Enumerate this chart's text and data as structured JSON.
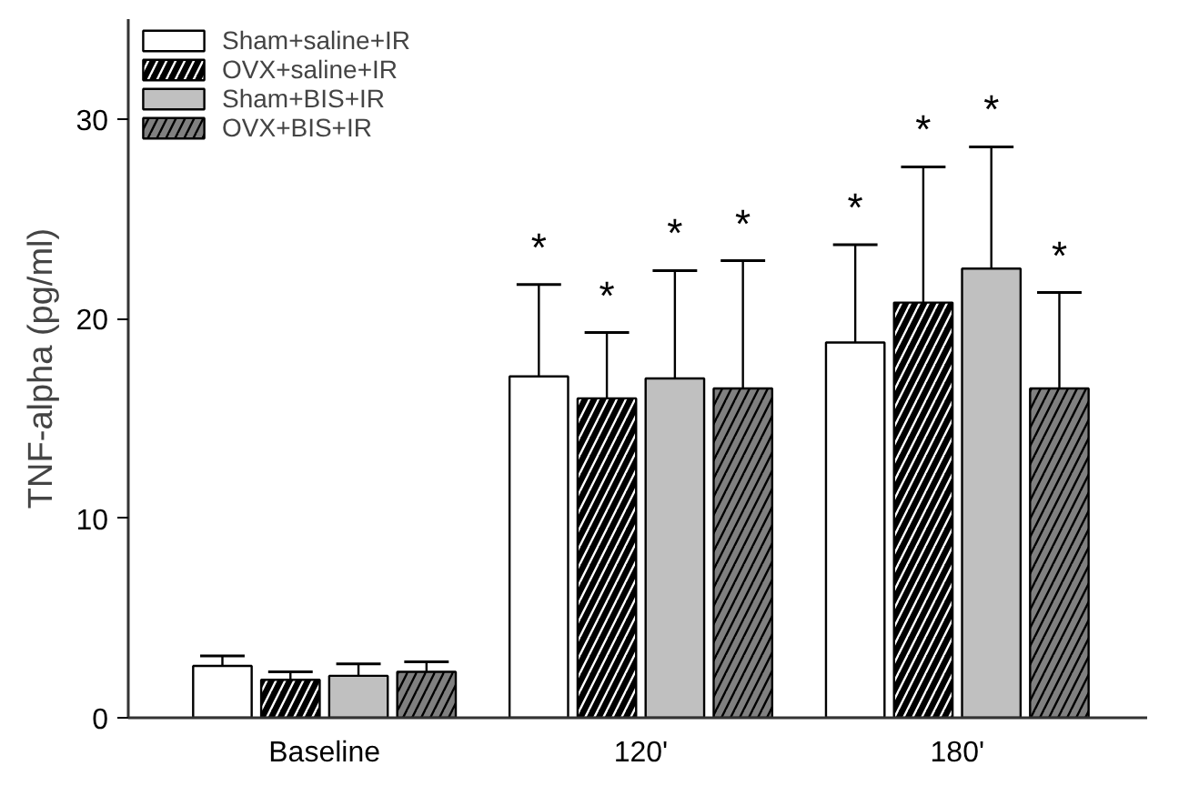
{
  "chart_data": {
    "type": "bar",
    "ylabel": "TNF-alpha (pg/ml)",
    "categories": [
      "Baseline",
      "120'",
      "180'"
    ],
    "series": [
      {
        "name": "Sham+saline+IR",
        "color": "#ffffff",
        "values": [
          2.6,
          17.1,
          18.8
        ],
        "errors": [
          [
            2.6,
            3.1
          ],
          [
            17.1,
            21.7
          ],
          [
            18.8,
            23.7
          ]
        ]
      },
      {
        "name": "OVX+saline+IR",
        "color": "#000000",
        "values": [
          1.9,
          16.0,
          20.8
        ],
        "errors": [
          [
            1.9,
            2.3
          ],
          [
            16.0,
            19.3
          ],
          [
            20.8,
            27.6
          ]
        ]
      },
      {
        "name": "Sham+BIS+IR",
        "color": "#c0c0c0",
        "values": [
          2.1,
          17.0,
          22.5
        ],
        "errors": [
          [
            2.1,
            2.7
          ],
          [
            17.0,
            22.4
          ],
          [
            22.5,
            28.6
          ]
        ]
      },
      {
        "name": "OVX+BIS+IR",
        "color": "#808080",
        "values": [
          2.3,
          16.5,
          16.5
        ],
        "errors": [
          [
            2.3,
            2.8
          ],
          [
            16.5,
            22.9
          ],
          [
            16.5,
            21.3
          ]
        ]
      }
    ],
    "annotations": [
      "*",
      "*",
      "*",
      "*",
      "*",
      "*",
      "*",
      "*"
    ],
    "ylim": [
      0,
      35
    ],
    "yticks": [
      0,
      10,
      20,
      30
    ],
    "grid": false,
    "legend": "top left"
  }
}
